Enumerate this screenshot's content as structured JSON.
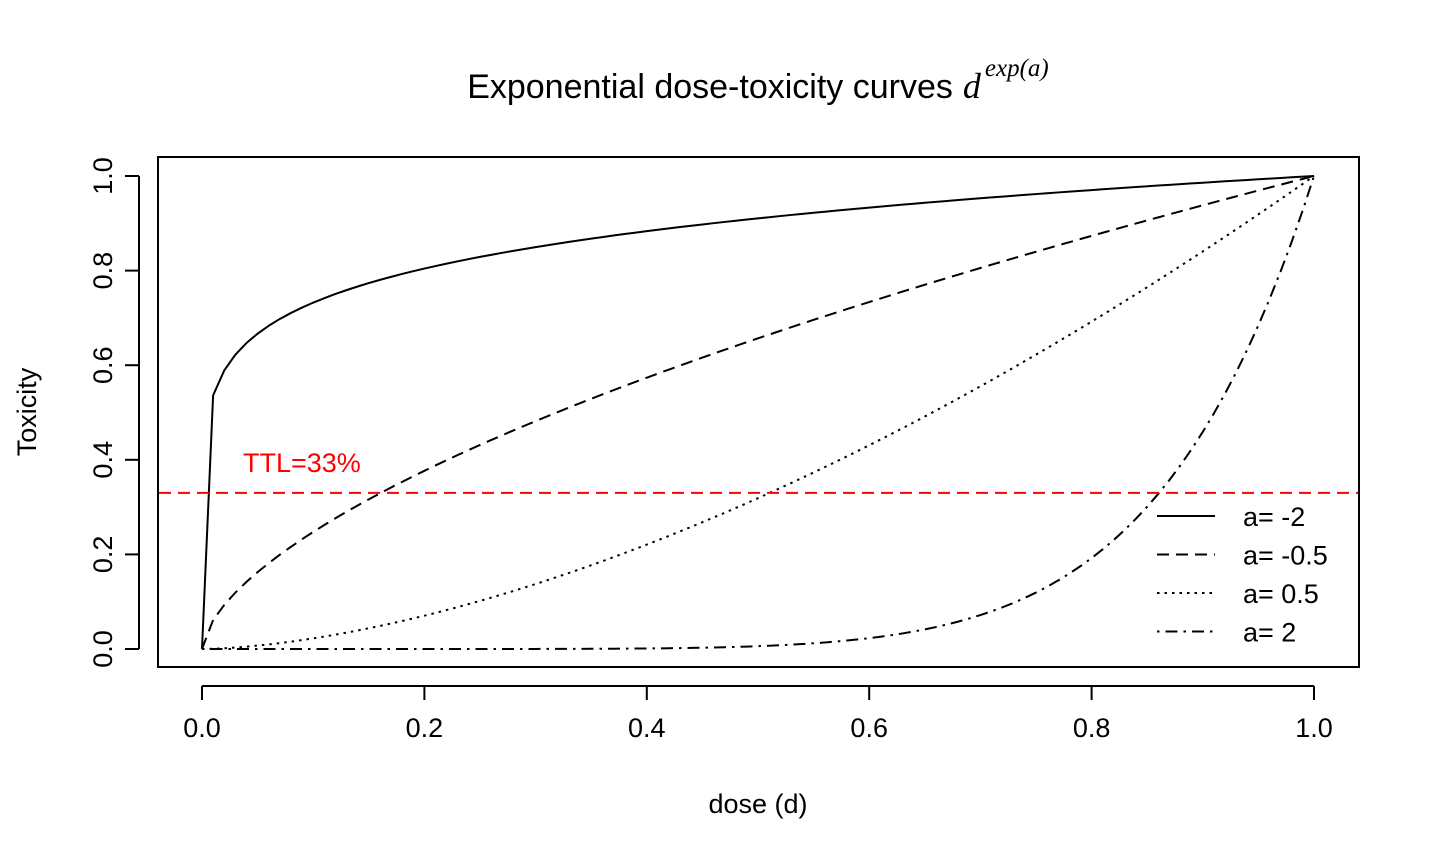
{
  "chart_data": {
    "type": "line",
    "title": {
      "prefix": "Exponential dose-toxicity curves",
      "base": "d",
      "exponent": "exp(a)"
    },
    "xlabel": "dose (d)",
    "ylabel": "Toxicity",
    "xlim": [
      -0.04,
      1.04
    ],
    "ylim": [
      -0.04,
      1.04
    ],
    "x_ticks": [
      0.0,
      0.2,
      0.4,
      0.6,
      0.8,
      1.0
    ],
    "y_ticks": [
      0.0,
      0.2,
      0.4,
      0.6,
      0.8,
      1.0
    ],
    "x_tick_labels": [
      "0.0",
      "0.2",
      "0.4",
      "0.6",
      "0.8",
      "1.0"
    ],
    "y_tick_labels": [
      "0.0",
      "0.2",
      "0.4",
      "0.6",
      "0.8",
      "1.0"
    ],
    "grid": false,
    "legend_position": "bottom-right",
    "series": [
      {
        "name": "a= -2",
        "a": -2,
        "linestyle": "solid"
      },
      {
        "name": "a= -0.5",
        "a": -0.5,
        "linestyle": "dashed"
      },
      {
        "name": "a= 0.5",
        "a": 0.5,
        "linestyle": "dotted"
      },
      {
        "name": "a= 2",
        "a": 2,
        "linestyle": "dotdash"
      }
    ],
    "x": [
      0,
      0.01,
      0.02,
      0.03,
      0.04,
      0.05,
      0.06,
      0.07,
      0.08,
      0.09,
      0.1,
      0.11,
      0.12,
      0.13,
      0.14,
      0.15,
      0.16,
      0.17,
      0.18,
      0.19,
      0.2,
      0.21,
      0.22,
      0.23,
      0.24,
      0.25,
      0.26,
      0.27,
      0.28,
      0.29,
      0.3,
      0.31,
      0.32,
      0.33,
      0.34,
      0.35,
      0.36,
      0.37,
      0.38,
      0.39,
      0.4,
      0.41,
      0.42,
      0.43,
      0.44,
      0.45,
      0.46,
      0.47,
      0.48,
      0.49,
      0.5,
      0.51,
      0.52,
      0.53,
      0.54,
      0.55,
      0.56,
      0.57,
      0.58,
      0.59,
      0.6,
      0.61,
      0.62,
      0.63,
      0.64,
      0.65,
      0.66,
      0.67,
      0.68,
      0.69,
      0.7,
      0.71,
      0.72,
      0.73,
      0.74,
      0.75,
      0.76,
      0.77,
      0.78,
      0.79,
      0.8,
      0.81,
      0.82,
      0.83,
      0.84,
      0.85,
      0.86,
      0.87,
      0.88,
      0.89,
      0.9,
      0.91,
      0.92,
      0.93,
      0.94,
      0.95,
      0.96,
      0.97,
      0.98,
      0.99,
      1
    ],
    "reference_line": {
      "y": 0.33,
      "color": "#ff0000",
      "linestyle": "dashed",
      "label": "TTL=33%"
    }
  }
}
